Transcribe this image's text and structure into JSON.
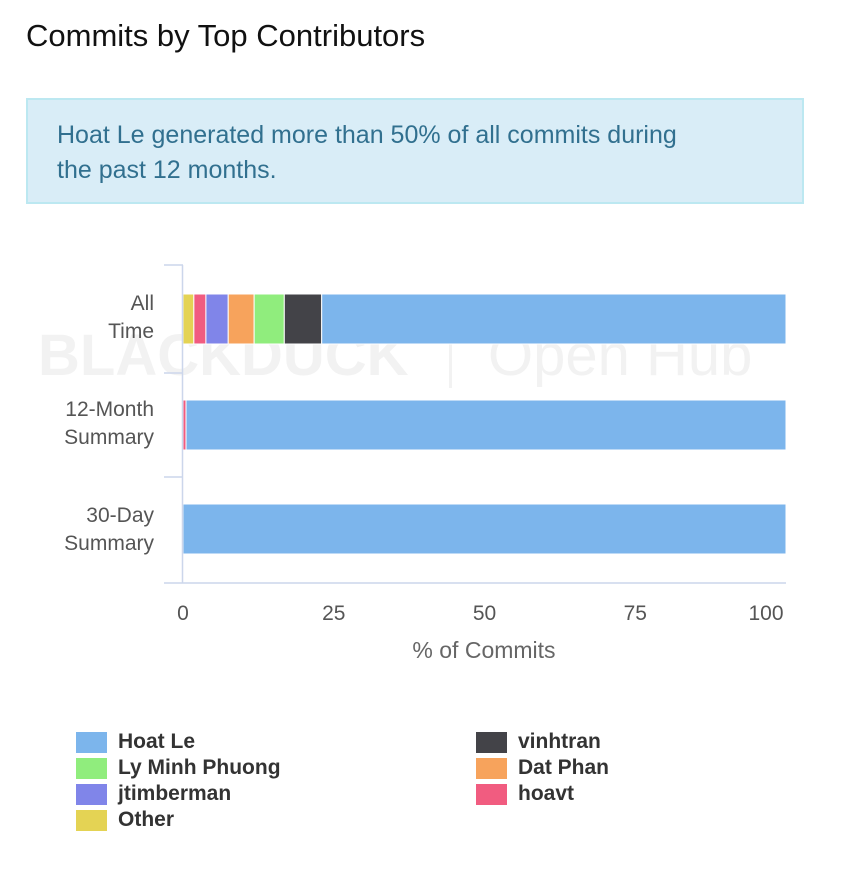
{
  "page": {
    "title": "Commits by Top Contributors",
    "info": "Hoat Le generated more than 50% of all commits during the past 12 months.",
    "watermark": {
      "left": "BLACKDUCK",
      "right": "Open Hub"
    }
  },
  "chart_data": {
    "type": "bar",
    "orientation": "horizontal",
    "stacked": true,
    "categories": [
      [
        "All",
        "Time"
      ],
      [
        "12-Month",
        "Summary"
      ],
      [
        "30-Day",
        "Summary"
      ]
    ],
    "xlabel": "% of Commits",
    "ylabel": "",
    "xlim": [
      0,
      100
    ],
    "xticks": [
      0,
      25,
      50,
      75,
      100
    ],
    "grid": false,
    "legend_position": "bottom",
    "series": [
      {
        "name": "Other",
        "color": "#e4d354",
        "values": [
          1.8,
          0,
          0
        ]
      },
      {
        "name": "hoavt",
        "color": "#f15c80",
        "values": [
          2.0,
          0.5,
          0
        ]
      },
      {
        "name": "jtimberman",
        "color": "#8085e9",
        "values": [
          3.7,
          0,
          0
        ]
      },
      {
        "name": "Dat Phan",
        "color": "#f7a35c",
        "values": [
          4.3,
          0,
          0
        ]
      },
      {
        "name": "Ly Minh Phuong",
        "color": "#90ed7d",
        "values": [
          5.0,
          0,
          0
        ]
      },
      {
        "name": "vinhtran",
        "color": "#434348",
        "values": [
          6.2,
          0,
          0
        ]
      },
      {
        "name": "Hoat Le",
        "color": "#7cb5ec",
        "values": [
          77.0,
          99.5,
          100
        ]
      }
    ],
    "legend_order": [
      "Hoat Le",
      "vinhtran",
      "Ly Minh Phuong",
      "Dat Phan",
      "jtimberman",
      "hoavt",
      "Other"
    ]
  }
}
